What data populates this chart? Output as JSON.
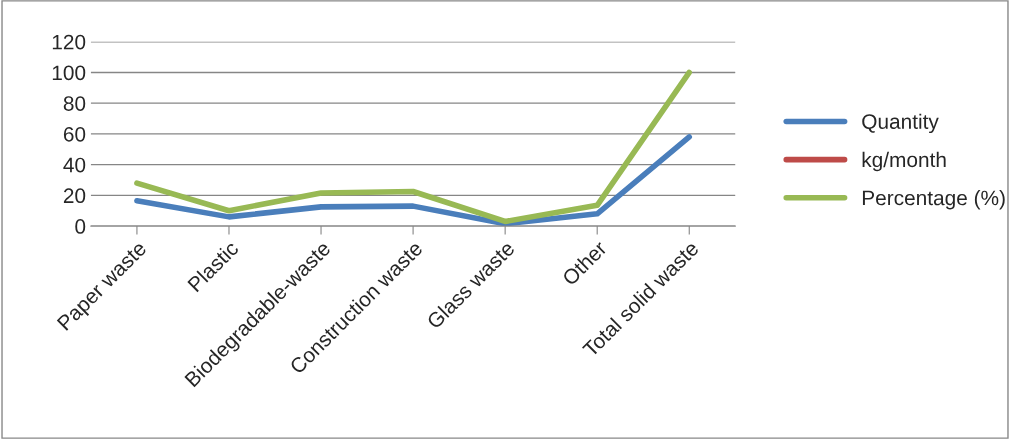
{
  "chart_data": {
    "type": "line",
    "categories": [
      "Paper waste",
      "Plastic",
      "Biodegradable-waste",
      "Construction waste",
      "Glass waste",
      "Other",
      "Total solid waste"
    ],
    "series": [
      {
        "name": "Quantity",
        "color": "#4a7ebb",
        "values": [
          16.5,
          6,
          12.5,
          13,
          1.5,
          8,
          58
        ]
      },
      {
        "name": "kg/month",
        "color": "#be4b48",
        "values": [
          null,
          null,
          null,
          null,
          null,
          null,
          null
        ]
      },
      {
        "name": "Percentage (%)",
        "color": "#98b954",
        "values": [
          28,
          10,
          21.5,
          22.5,
          3,
          13.5,
          100
        ]
      }
    ],
    "ylim": [
      0,
      120
    ],
    "yticks": [
      0,
      20,
      40,
      60,
      80,
      100,
      120
    ],
    "grid": "y",
    "legend": "right",
    "marker": "none",
    "line_style": "solid"
  }
}
